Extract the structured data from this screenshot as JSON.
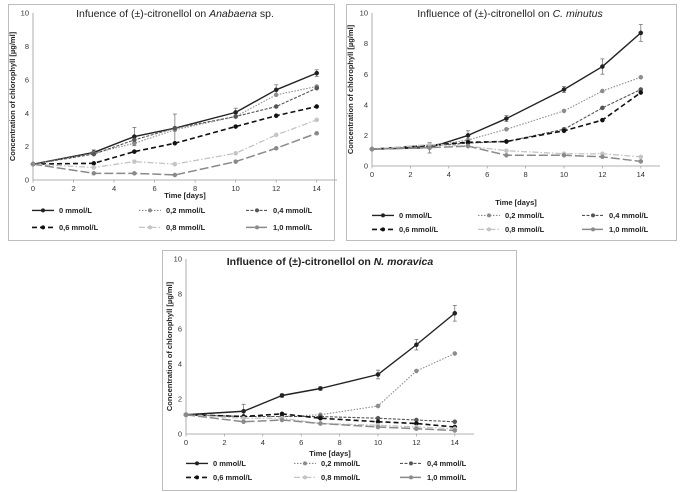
{
  "chart_data": [
    {
      "type": "line",
      "title_parts": [
        {
          "text": "Infuence of (±)-citronellol on ",
          "italic": false
        },
        {
          "text": "Anabaena",
          "italic": true
        },
        {
          "text": " sp.",
          "italic": false
        }
      ],
      "title_bold": false,
      "xlabel": "Time [days]",
      "ylabel": "Concentration of chlorophyll [µg/ml]",
      "x": [
        0,
        3,
        5,
        7,
        10,
        12,
        14
      ],
      "xticks": [
        0,
        2,
        4,
        6,
        8,
        10,
        12,
        14
      ],
      "xlim": [
        0,
        15
      ],
      "ylim": [
        0,
        10
      ],
      "yticks": [
        0,
        2,
        4,
        6,
        8,
        10
      ],
      "grid": false,
      "legend_position": "bottom",
      "series": [
        {
          "name": "0 mmol/L",
          "values": [
            0.95,
            1.65,
            2.6,
            3.1,
            4.05,
            5.4,
            6.4
          ]
        },
        {
          "name": "0,2 mmol/L",
          "values": [
            0.95,
            1.6,
            2.2,
            3.0,
            3.8,
            5.1,
            5.6
          ]
        },
        {
          "name": "0,4 mmol/L",
          "values": [
            0.95,
            1.55,
            2.4,
            3.1,
            3.8,
            4.4,
            5.5
          ]
        },
        {
          "name": "0,6 mmol/L",
          "values": [
            0.95,
            1.0,
            1.7,
            2.2,
            3.2,
            3.85,
            4.4
          ]
        },
        {
          "name": "0,8 mmol/L",
          "values": [
            0.95,
            0.75,
            1.1,
            0.95,
            1.6,
            2.7,
            3.6
          ]
        },
        {
          "name": "1,0 mmol/L",
          "values": [
            0.95,
            0.4,
            0.4,
            0.3,
            1.1,
            1.9,
            2.8
          ]
        }
      ]
    },
    {
      "type": "line",
      "title_parts": [
        {
          "text": "Influence of (±)-citronellol on ",
          "italic": false
        },
        {
          "text": "C. minutus",
          "italic": true
        }
      ],
      "title_bold": false,
      "xlabel": "Time [days]",
      "ylabel": "Concentration of chlorophyll [µg/ml]",
      "x": [
        0,
        3,
        5,
        7,
        10,
        12,
        14
      ],
      "xticks": [
        0,
        2,
        4,
        6,
        8,
        10,
        12,
        14
      ],
      "xlim": [
        0,
        15
      ],
      "ylim": [
        0,
        10
      ],
      "yticks": [
        0,
        2,
        4,
        6,
        8,
        10
      ],
      "grid": false,
      "legend_position": "bottom",
      "series": [
        {
          "name": "0 mmol/L",
          "values": [
            1.1,
            1.2,
            2.0,
            3.1,
            5.0,
            6.5,
            8.7
          ]
        },
        {
          "name": "0,2 mmol/L",
          "values": [
            1.1,
            1.3,
            1.7,
            2.4,
            3.6,
            4.9,
            5.8
          ]
        },
        {
          "name": "0,4 mmol/L",
          "values": [
            1.1,
            1.3,
            1.5,
            1.6,
            2.4,
            3.8,
            5.0
          ]
        },
        {
          "name": "0,6 mmol/L",
          "values": [
            1.1,
            1.35,
            1.55,
            1.6,
            2.3,
            3.0,
            4.8
          ]
        },
        {
          "name": "0,8 mmol/L",
          "values": [
            1.1,
            1.4,
            1.3,
            1.0,
            0.8,
            0.8,
            0.6
          ]
        },
        {
          "name": "1,0 mmol/L",
          "values": [
            1.1,
            1.2,
            1.3,
            0.7,
            0.7,
            0.6,
            0.3
          ]
        }
      ]
    },
    {
      "type": "line",
      "title_parts": [
        {
          "text": "Influence of (±)-citronellol on ",
          "italic": false
        },
        {
          "text": "N. moravica",
          "italic": true
        }
      ],
      "title_bold": true,
      "xlabel": "Time [days]",
      "ylabel": "Concentration of chlorophyll [µg/ml]",
      "x": [
        0,
        3,
        5,
        7,
        10,
        12,
        14
      ],
      "xticks": [
        0,
        2,
        4,
        6,
        8,
        10,
        12,
        14
      ],
      "xlim": [
        0,
        15
      ],
      "ylim": [
        0,
        10
      ],
      "yticks": [
        0,
        2,
        4,
        6,
        8,
        10
      ],
      "grid": false,
      "legend_position": "bottom",
      "series": [
        {
          "name": "0 mmol/L",
          "values": [
            1.1,
            1.3,
            2.2,
            2.6,
            3.4,
            5.1,
            6.9
          ]
        },
        {
          "name": "0,2 mmol/L",
          "values": [
            1.1,
            1.0,
            1.0,
            1.1,
            1.6,
            3.6,
            4.6
          ]
        },
        {
          "name": "0,4 mmol/L",
          "values": [
            1.1,
            1.0,
            1.0,
            1.0,
            0.9,
            0.8,
            0.7
          ]
        },
        {
          "name": "0,6 mmol/L",
          "values": [
            1.1,
            1.0,
            1.15,
            0.9,
            0.7,
            0.6,
            0.4
          ]
        },
        {
          "name": "0,8 mmol/L",
          "values": [
            1.1,
            0.9,
            0.9,
            0.6,
            0.5,
            0.4,
            0.3
          ]
        },
        {
          "name": "1,0 mmol/L",
          "values": [
            1.1,
            0.7,
            0.8,
            0.6,
            0.4,
            0.3,
            0.2
          ]
        }
      ]
    }
  ]
}
